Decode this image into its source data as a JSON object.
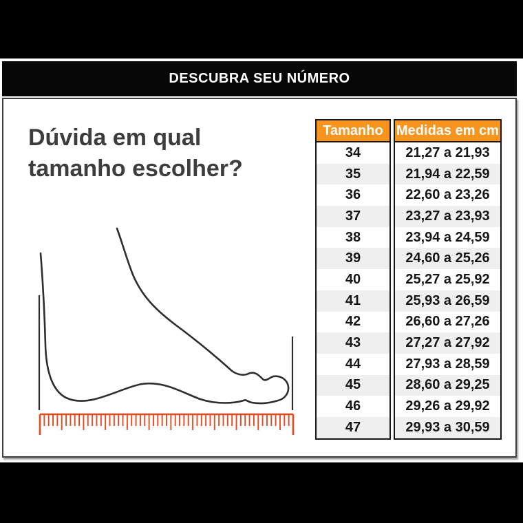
{
  "banner": {
    "title": "DESCUBRA SEU NÚMERO"
  },
  "intro": {
    "heading_line1": "Dúvida em qual",
    "heading_line2": "tamanho escolher?"
  },
  "illustration": {
    "name": "foot-measurement-diagram"
  },
  "chart_data": {
    "type": "table",
    "title": "DESCUBRA SEU NÚMERO",
    "columns": [
      "Tamanho",
      "Medidas em cm"
    ],
    "rows": [
      [
        "34",
        "21,27 a 21,93"
      ],
      [
        "35",
        "21,94 a 22,59"
      ],
      [
        "36",
        "22,60 a 23,26"
      ],
      [
        "37",
        "23,27 a 23,93"
      ],
      [
        "38",
        "23,94 a 24,59"
      ],
      [
        "39",
        "24,60 a 25,26"
      ],
      [
        "40",
        "25,27 a 25,92"
      ],
      [
        "41",
        "25,93 a 26,59"
      ],
      [
        "42",
        "26,60 a 27,26"
      ],
      [
        "43",
        "27,27 a 27,92"
      ],
      [
        "44",
        "27,93 a 28,59"
      ],
      [
        "45",
        "28,60 a 29,25"
      ],
      [
        "46",
        "29,26 a 29,92"
      ],
      [
        "47",
        "29,93 a 30,59"
      ]
    ]
  },
  "colors": {
    "table_header_bg": "#f7941e",
    "ruler_orange": "#e8491f",
    "alt_row_gray": "#efefef",
    "band_black": "#000000",
    "outline_dark": "#2e2e2e"
  }
}
